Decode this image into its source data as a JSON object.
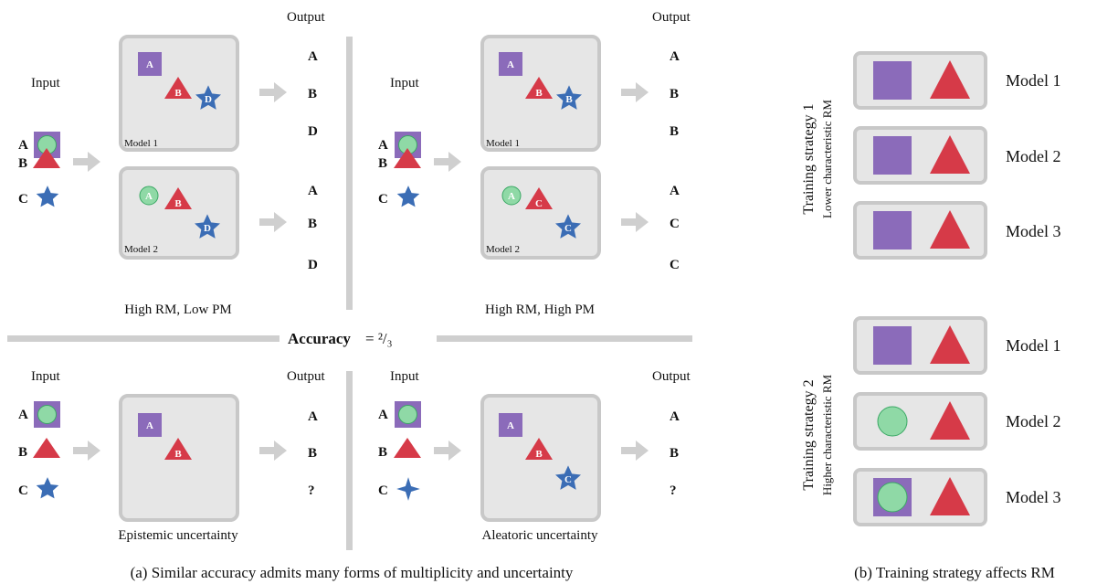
{
  "colors": {
    "panel_fill": "#e6e6e6",
    "panel_stroke": "#c8c8c8",
    "arrow": "#cfcfcf",
    "square": "#8b6bba",
    "triangle": "#d63a48",
    "star": "#3b6db5",
    "circle": "#8fd9a6",
    "circle_stroke": "#3aa864"
  },
  "icons": [
    "square-icon",
    "triangle-icon",
    "star-icon",
    "circle-icon",
    "diamond-star-icon",
    "arrow-right-icon"
  ],
  "text": {
    "input": "Input",
    "output": "Output",
    "model1": "Model 1",
    "model2": "Model 2",
    "model3": "Model 3",
    "letter_a": "A",
    "letter_b": "B",
    "letter_c": "C",
    "letter_d": "D",
    "question": "?",
    "high_rm_low_pm": "High RM, Low PM",
    "high_rm_high_pm": "High RM, High PM",
    "accuracy_label": "Accuracy",
    "accuracy_value": "= ²/₃",
    "epistemic": "Epistemic uncertainty",
    "aleatoric": "Aleatoric uncertainty",
    "strategy1_title": "Training strategy 1",
    "strategy1_sub": "Lower characteristic RM",
    "strategy2_title": "Training strategy 2",
    "strategy2_sub": "Higher characteristic RM",
    "caption_a": "(a) Similar accuracy admits many forms of multiplicity and uncertainty",
    "caption_b": "(b) Training strategy affects RM"
  },
  "outputs": {
    "top_left_model1": [
      "A",
      "B",
      "D"
    ],
    "top_left_model2": [
      "A",
      "B",
      "D"
    ],
    "top_right_model1": [
      "A",
      "B",
      "B"
    ],
    "top_right_model2": [
      "A",
      "C",
      "C"
    ],
    "bottom_left": [
      "A",
      "B",
      "?"
    ],
    "bottom_right": [
      "A",
      "B",
      "?"
    ]
  }
}
